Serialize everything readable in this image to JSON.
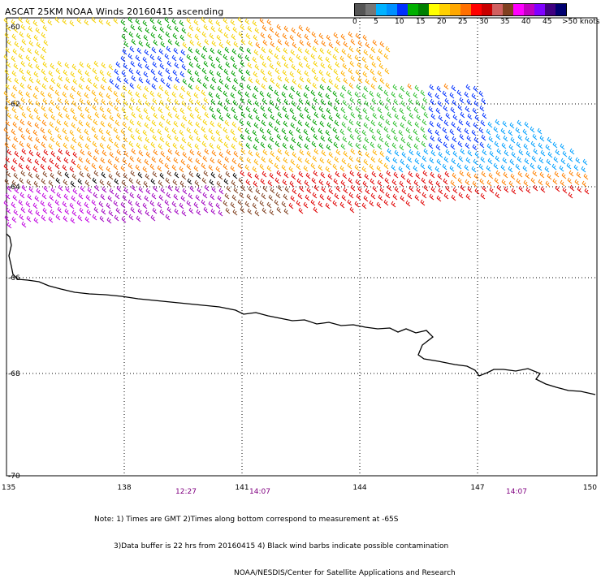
{
  "title": "ASCAT 25KM NOAA Winds 20160415 ascending",
  "scale": {
    "colors": [
      "#555555",
      "#777777",
      "#00b2ff",
      "#0090ff",
      "#0030ff",
      "#00b000",
      "#008000",
      "#ffff00",
      "#ffd000",
      "#ffa800",
      "#ff7000",
      "#ff0000",
      "#c80000",
      "#d06060",
      "#804020",
      "#ff00ff",
      "#c000c0",
      "#8000ff",
      "#400080",
      "#000070"
    ],
    "labels": [
      "0",
      "5",
      "10",
      "15",
      "20",
      "25",
      "30",
      "35",
      "40",
      "45",
      ">50 knots"
    ]
  },
  "map": {
    "lat_labels": [
      "-60",
      "-62",
      "-64",
      "-66",
      "-68",
      "-70"
    ],
    "lon_labels": [
      "135",
      "138",
      "141",
      "144",
      "147",
      "150"
    ],
    "times": [
      "12:27",
      "14:07",
      "14:07"
    ]
  },
  "notes": [
    "Note: 1) Times are GMT 2)Times along bottom correspond to measurement at -65S",
    "3)Data buffer is 22 hrs from 20160415 4) Black wind barbs indicate possible contamination",
    "NOAA/NESDIS/Center for Satellite Applications and Research"
  ]
}
